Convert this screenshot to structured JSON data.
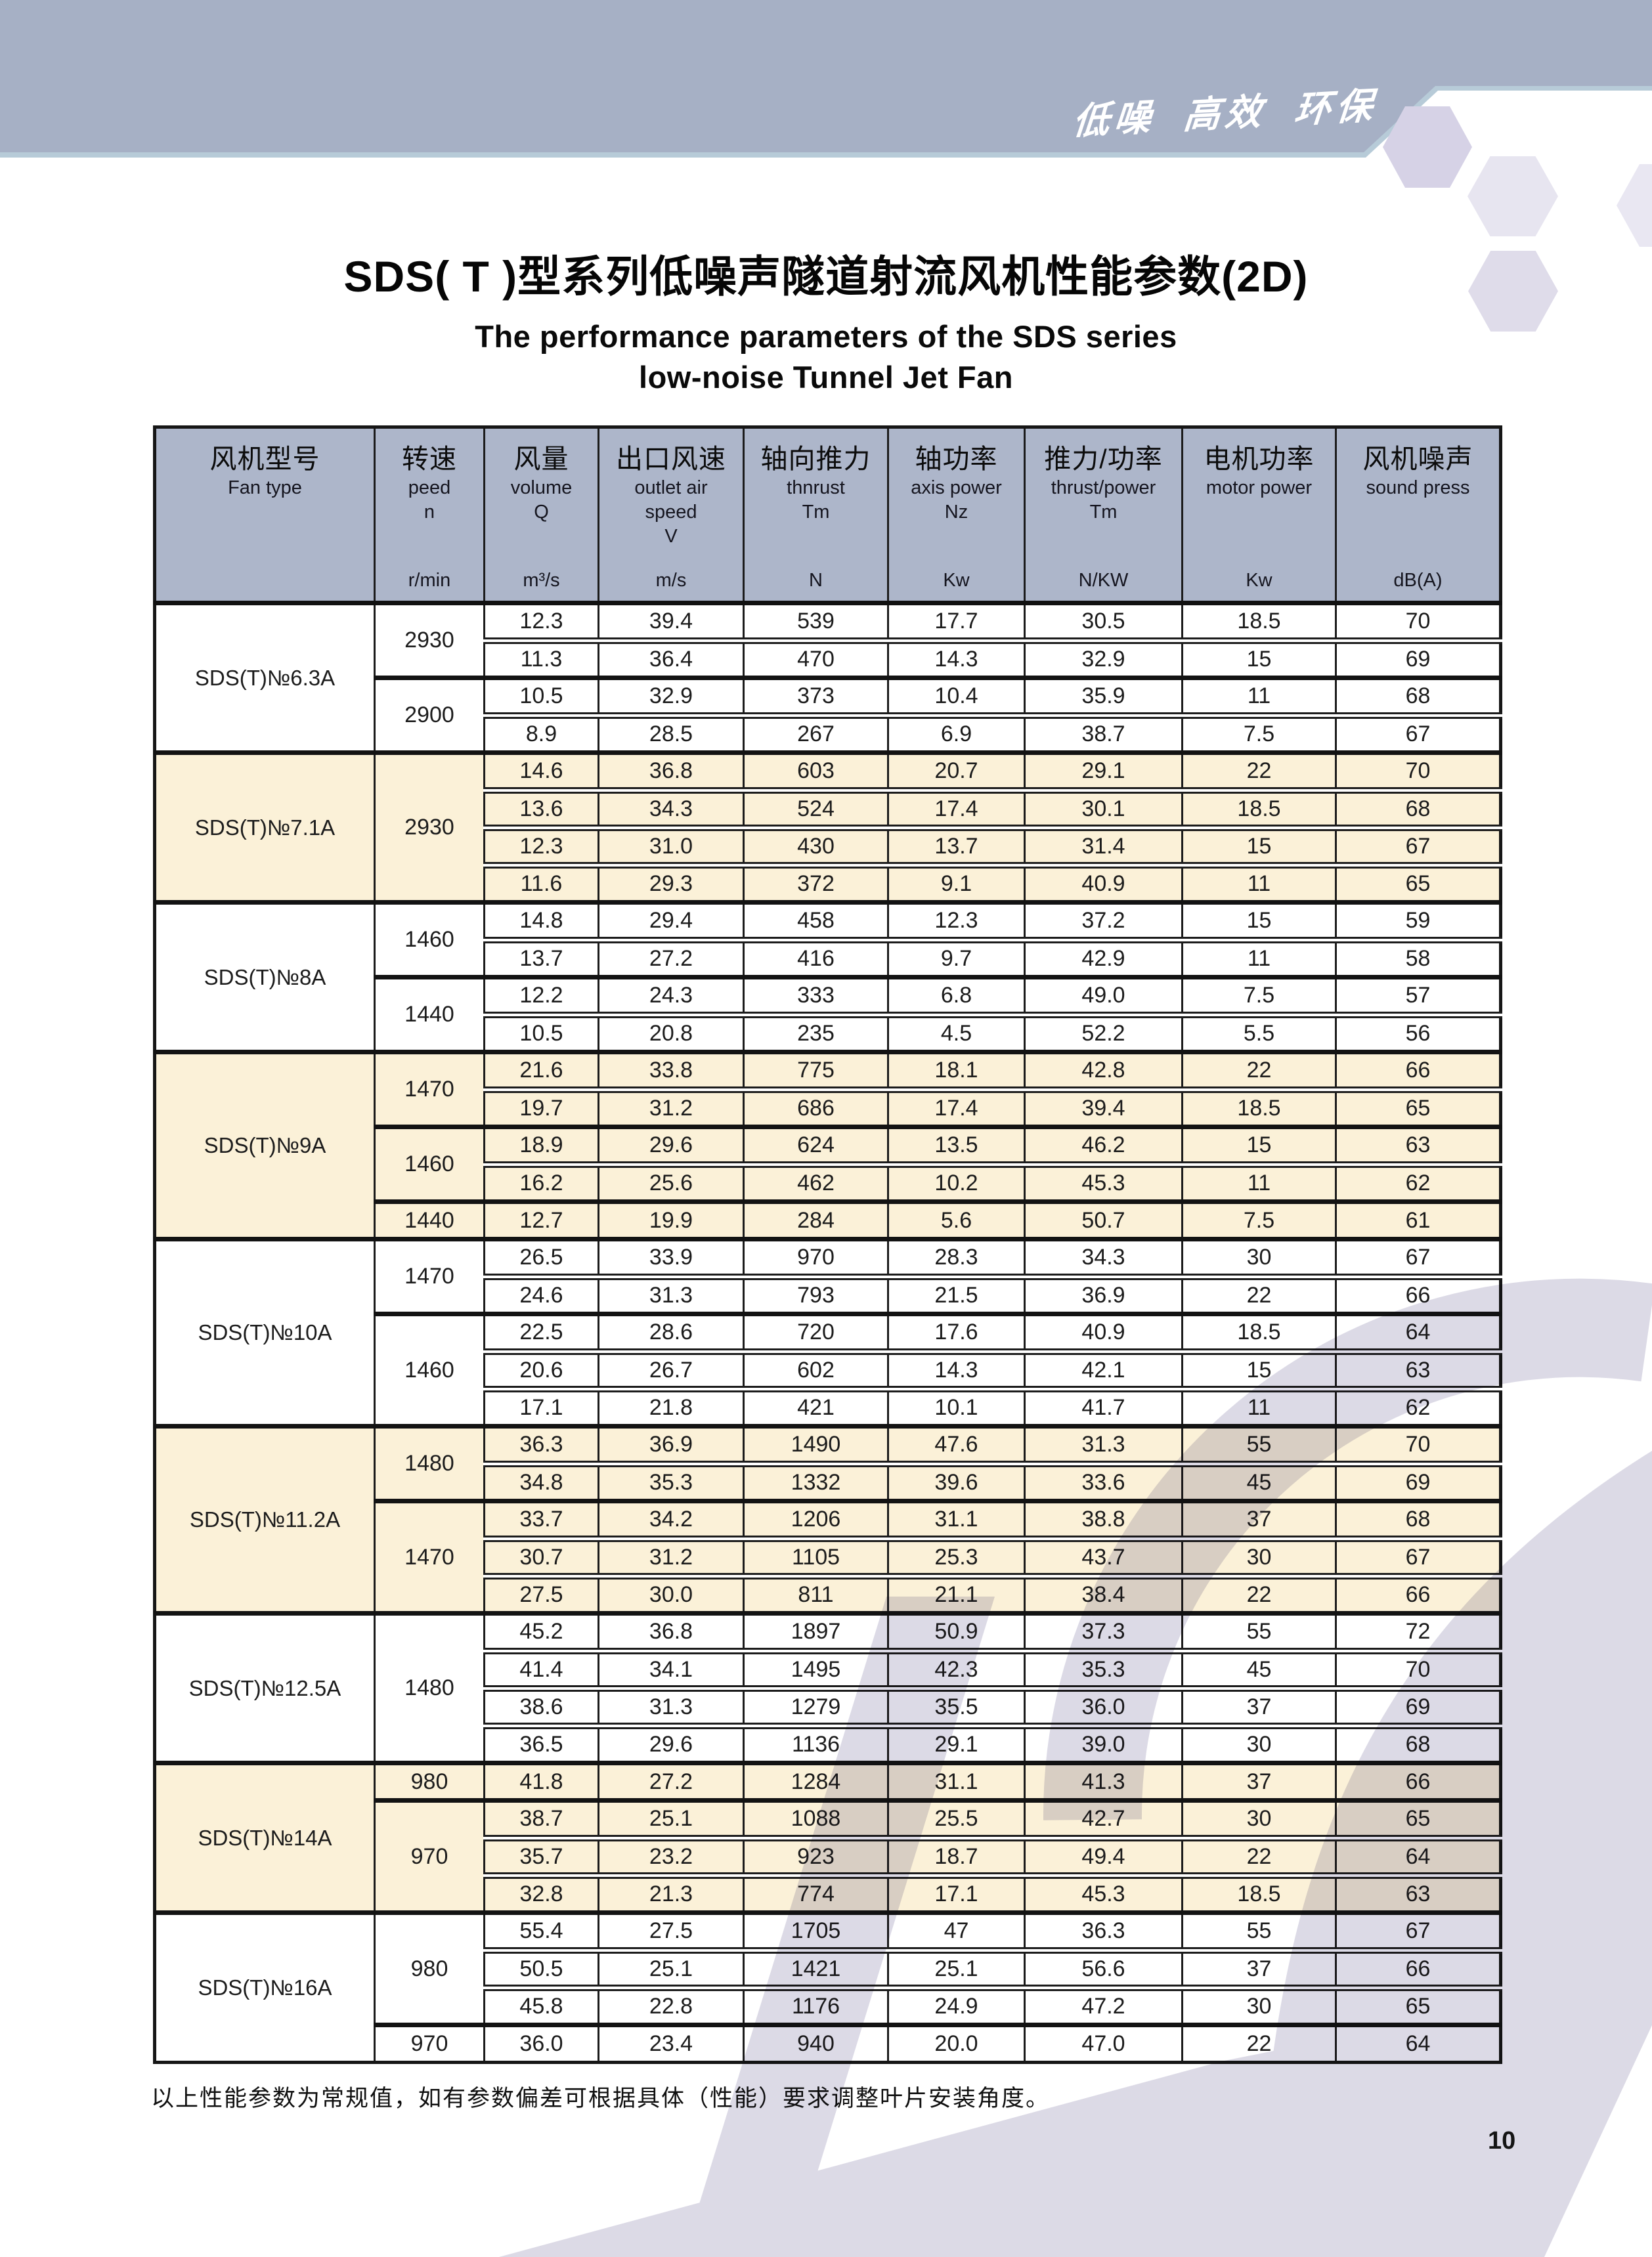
{
  "banner": {
    "slogan": "低噪 高效 环保",
    "color": "#a6b0c5"
  },
  "title": {
    "zh": "SDS( T )型系列低噪声隧道射流风机性能参数(2D)",
    "en_line1": "The performance parameters of the SDS series",
    "en_line2": "low-noise Tunnel Jet Fan"
  },
  "table": {
    "columns": [
      {
        "zh": "风机型号",
        "lines": [
          "Fan type"
        ],
        "unit": ""
      },
      {
        "zh": "转速",
        "lines": [
          "peed",
          "n"
        ],
        "unit": "r/min"
      },
      {
        "zh": "风量",
        "lines": [
          "volume",
          "Q"
        ],
        "unit": "m³/s"
      },
      {
        "zh": "出口风速",
        "lines": [
          "outlet air",
          "speed",
          "V"
        ],
        "unit": "m/s"
      },
      {
        "zh": "轴向推力",
        "lines": [
          "thnrust",
          "Tm"
        ],
        "unit": "N"
      },
      {
        "zh": "轴功率",
        "lines": [
          "axis power",
          "Nz"
        ],
        "unit": "Kw"
      },
      {
        "zh": "推力/功率",
        "lines": [
          "thrust/power",
          "Tm"
        ],
        "unit": "N/KW"
      },
      {
        "zh": "电机功率",
        "lines": [
          "motor power"
        ],
        "unit": "Kw"
      },
      {
        "zh": "风机噪声",
        "lines": [
          "sound press"
        ],
        "unit": "dB(A)"
      }
    ],
    "groups": [
      {
        "model": "SDS(T)№6.3A",
        "tint": "white",
        "blocks": [
          {
            "rpm": "2930",
            "rows": [
              [
                "12.3",
                "39.4",
                "539",
                "17.7",
                "30.5",
                "18.5",
                "70"
              ],
              [
                "11.3",
                "36.4",
                "470",
                "14.3",
                "32.9",
                "15",
                "69"
              ]
            ]
          },
          {
            "rpm": "2900",
            "rows": [
              [
                "10.5",
                "32.9",
                "373",
                "10.4",
                "35.9",
                "11",
                "68"
              ],
              [
                "8.9",
                "28.5",
                "267",
                "6.9",
                "38.7",
                "7.5",
                "67"
              ]
            ]
          }
        ]
      },
      {
        "model": "SDS(T)№7.1A",
        "tint": "cream",
        "blocks": [
          {
            "rpm": "2930",
            "rows": [
              [
                "14.6",
                "36.8",
                "603",
                "20.7",
                "29.1",
                "22",
                "70"
              ],
              [
                "13.6",
                "34.3",
                "524",
                "17.4",
                "30.1",
                "18.5",
                "68"
              ],
              [
                "12.3",
                "31.0",
                "430",
                "13.7",
                "31.4",
                "15",
                "67"
              ],
              [
                "11.6",
                "29.3",
                "372",
                "9.1",
                "40.9",
                "11",
                "65"
              ]
            ]
          }
        ]
      },
      {
        "model": "SDS(T)№8A",
        "tint": "white",
        "blocks": [
          {
            "rpm": "1460",
            "rows": [
              [
                "14.8",
                "29.4",
                "458",
                "12.3",
                "37.2",
                "15",
                "59"
              ],
              [
                "13.7",
                "27.2",
                "416",
                "9.7",
                "42.9",
                "11",
                "58"
              ]
            ]
          },
          {
            "rpm": "1440",
            "rows": [
              [
                "12.2",
                "24.3",
                "333",
                "6.8",
                "49.0",
                "7.5",
                "57"
              ],
              [
                "10.5",
                "20.8",
                "235",
                "4.5",
                "52.2",
                "5.5",
                "56"
              ]
            ]
          }
        ]
      },
      {
        "model": "SDS(T)№9A",
        "tint": "cream",
        "blocks": [
          {
            "rpm": "1470",
            "rows": [
              [
                "21.6",
                "33.8",
                "775",
                "18.1",
                "42.8",
                "22",
                "66"
              ],
              [
                "19.7",
                "31.2",
                "686",
                "17.4",
                "39.4",
                "18.5",
                "65"
              ]
            ]
          },
          {
            "rpm": "1460",
            "rows": [
              [
                "18.9",
                "29.6",
                "624",
                "13.5",
                "46.2",
                "15",
                "63"
              ],
              [
                "16.2",
                "25.6",
                "462",
                "10.2",
                "45.3",
                "11",
                "62"
              ]
            ]
          },
          {
            "rpm": "1440",
            "rows": [
              [
                "12.7",
                "19.9",
                "284",
                "5.6",
                "50.7",
                "7.5",
                "61"
              ]
            ]
          }
        ]
      },
      {
        "model": "SDS(T)№10A",
        "tint": "white",
        "blocks": [
          {
            "rpm": "1470",
            "rows": [
              [
                "26.5",
                "33.9",
                "970",
                "28.3",
                "34.3",
                "30",
                "67"
              ],
              [
                "24.6",
                "31.3",
                "793",
                "21.5",
                "36.9",
                "22",
                "66"
              ]
            ]
          },
          {
            "rpm": "1460",
            "rows": [
              [
                "22.5",
                "28.6",
                "720",
                "17.6",
                "40.9",
                "18.5",
                "64"
              ],
              [
                "20.6",
                "26.7",
                "602",
                "14.3",
                "42.1",
                "15",
                "63"
              ],
              [
                "17.1",
                "21.8",
                "421",
                "10.1",
                "41.7",
                "11",
                "62"
              ]
            ]
          }
        ]
      },
      {
        "model": "SDS(T)№11.2A",
        "tint": "cream",
        "blocks": [
          {
            "rpm": "1480",
            "rows": [
              [
                "36.3",
                "36.9",
                "1490",
                "47.6",
                "31.3",
                "55",
                "70"
              ],
              [
                "34.8",
                "35.3",
                "1332",
                "39.6",
                "33.6",
                "45",
                "69"
              ]
            ]
          },
          {
            "rpm": "1470",
            "rows": [
              [
                "33.7",
                "34.2",
                "1206",
                "31.1",
                "38.8",
                "37",
                "68"
              ],
              [
                "30.7",
                "31.2",
                "1105",
                "25.3",
                "43.7",
                "30",
                "67"
              ],
              [
                "27.5",
                "30.0",
                "811",
                "21.1",
                "38.4",
                "22",
                "66"
              ]
            ]
          }
        ]
      },
      {
        "model": "SDS(T)№12.5A",
        "tint": "white",
        "blocks": [
          {
            "rpm": "1480",
            "rows": [
              [
                "45.2",
                "36.8",
                "1897",
                "50.9",
                "37.3",
                "55",
                "72"
              ],
              [
                "41.4",
                "34.1",
                "1495",
                "42.3",
                "35.3",
                "45",
                "70"
              ],
              [
                "38.6",
                "31.3",
                "1279",
                "35.5",
                "36.0",
                "37",
                "69"
              ],
              [
                "36.5",
                "29.6",
                "1136",
                "29.1",
                "39.0",
                "30",
                "68"
              ]
            ]
          }
        ]
      },
      {
        "model": "SDS(T)№14A",
        "tint": "cream",
        "blocks": [
          {
            "rpm": "980",
            "rows": [
              [
                "41.8",
                "27.2",
                "1284",
                "31.1",
                "41.3",
                "37",
                "66"
              ]
            ]
          },
          {
            "rpm": "970",
            "rows": [
              [
                "38.7",
                "25.1",
                "1088",
                "25.5",
                "42.7",
                "30",
                "65"
              ],
              [
                "35.7",
                "23.2",
                "923",
                "18.7",
                "49.4",
                "22",
                "64"
              ],
              [
                "32.8",
                "21.3",
                "774",
                "17.1",
                "45.3",
                "18.5",
                "63"
              ]
            ]
          }
        ]
      },
      {
        "model": "SDS(T)№16A",
        "tint": "white",
        "blocks": [
          {
            "rpm": "980",
            "rows": [
              [
                "55.4",
                "27.5",
                "1705",
                "47",
                "36.3",
                "55",
                "67"
              ],
              [
                "50.5",
                "25.1",
                "1421",
                "25.1",
                "56.6",
                "37",
                "66"
              ],
              [
                "45.8",
                "22.8",
                "1176",
                "24.9",
                "47.2",
                "30",
                "65"
              ]
            ]
          },
          {
            "rpm": "970",
            "rows": [
              [
                "36.0",
                "23.4",
                "940",
                "20.0",
                "47.0",
                "22",
                "64"
              ]
            ]
          }
        ]
      }
    ]
  },
  "footer": {
    "note": "以上性能参数为常规值，如有参数偏差可根据具体（性能）要求调整叶片安装角度。"
  },
  "page_number": "10",
  "colors": {
    "banner": "#a6b0c5",
    "banner_edge": "#b7cbd8",
    "header_bg": "#adb6ca",
    "row_cream": "#fbf1d8",
    "row_white": "#ffffff",
    "watermark": "#dcdae6",
    "border": "#1c1c1c"
  }
}
